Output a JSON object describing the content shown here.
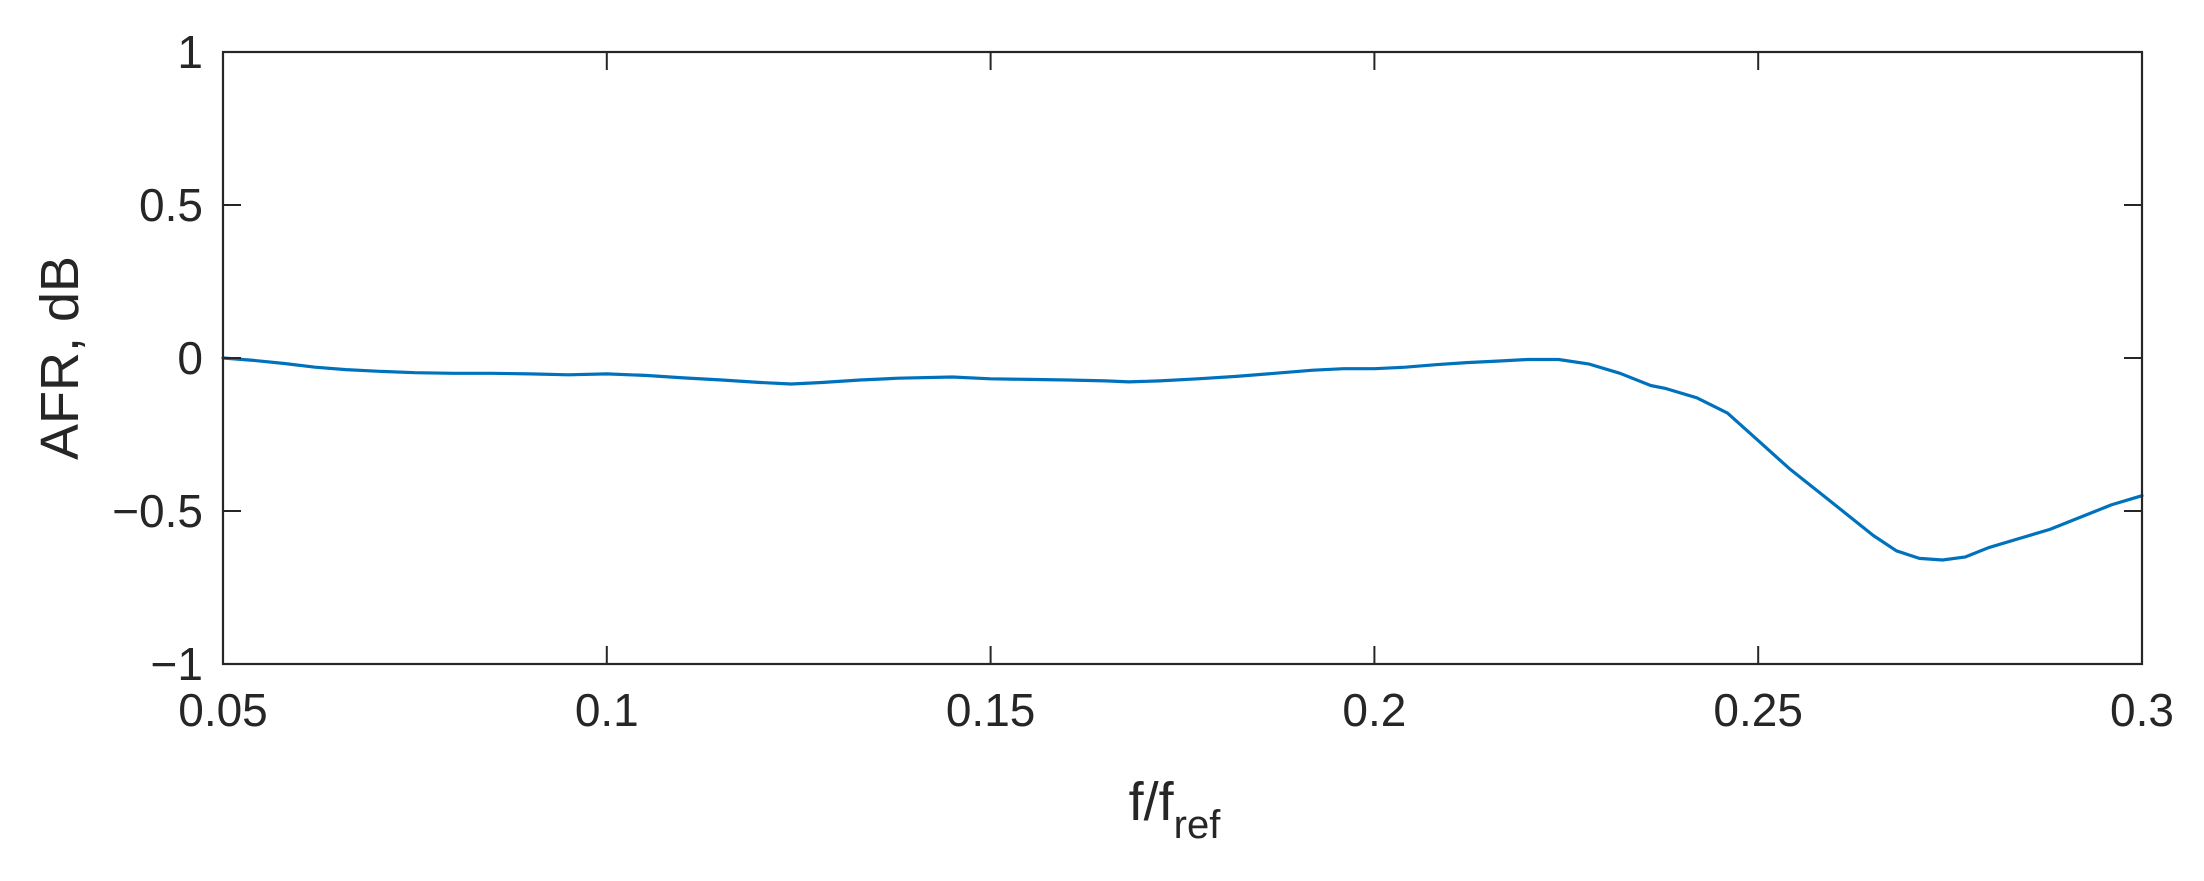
{
  "chart_data": {
    "type": "line",
    "title": "",
    "xlabel": "f/f",
    "xlabel_subscript": "ref",
    "ylabel": "AFR, dB",
    "xlim": [
      0.05,
      0.3
    ],
    "ylim": [
      -1,
      1
    ],
    "xticks": [
      0.05,
      0.1,
      0.15,
      0.2,
      0.25,
      0.3
    ],
    "xtick_labels": [
      "0.05",
      "0.1",
      "0.15",
      "0.2",
      "0.25",
      "0.3"
    ],
    "yticks": [
      1,
      0.5,
      0,
      -0.5,
      -1
    ],
    "ytick_labels": [
      "1",
      "0.5",
      "0",
      "−0.5",
      "−1"
    ],
    "grid": false,
    "box": true,
    "line_color": "#0072BD",
    "axis_color": "#262626",
    "series": [
      {
        "x": [
          0.05,
          0.054,
          0.058,
          0.062,
          0.066,
          0.07,
          0.075,
          0.08,
          0.085,
          0.09,
          0.095,
          0.1,
          0.105,
          0.11,
          0.115,
          0.12,
          0.124,
          0.128,
          0.133,
          0.138,
          0.145,
          0.15,
          0.155,
          0.16,
          0.165,
          0.168,
          0.172,
          0.177,
          0.182,
          0.187,
          0.192,
          0.196,
          0.2,
          0.204,
          0.208,
          0.212,
          0.216,
          0.22,
          0.224,
          0.228,
          0.232,
          0.236,
          0.238,
          0.242,
          0.246,
          0.25,
          0.254,
          0.258,
          0.262,
          0.265,
          0.268,
          0.271,
          0.274,
          0.277,
          0.28,
          0.284,
          0.288,
          0.292,
          0.296,
          0.3
        ],
        "y": [
          0.0,
          -0.008,
          -0.018,
          -0.03,
          -0.038,
          -0.043,
          -0.048,
          -0.05,
          -0.05,
          -0.052,
          -0.055,
          -0.052,
          -0.057,
          -0.065,
          -0.072,
          -0.08,
          -0.085,
          -0.08,
          -0.072,
          -0.066,
          -0.062,
          -0.068,
          -0.07,
          -0.072,
          -0.075,
          -0.078,
          -0.075,
          -0.068,
          -0.06,
          -0.05,
          -0.04,
          -0.035,
          -0.035,
          -0.03,
          -0.022,
          -0.015,
          -0.01,
          -0.005,
          -0.005,
          -0.02,
          -0.05,
          -0.09,
          -0.1,
          -0.13,
          -0.18,
          -0.27,
          -0.36,
          -0.44,
          -0.52,
          -0.58,
          -0.63,
          -0.655,
          -0.66,
          -0.65,
          -0.62,
          -0.59,
          -0.56,
          -0.52,
          -0.48,
          -0.45
        ]
      }
    ]
  }
}
